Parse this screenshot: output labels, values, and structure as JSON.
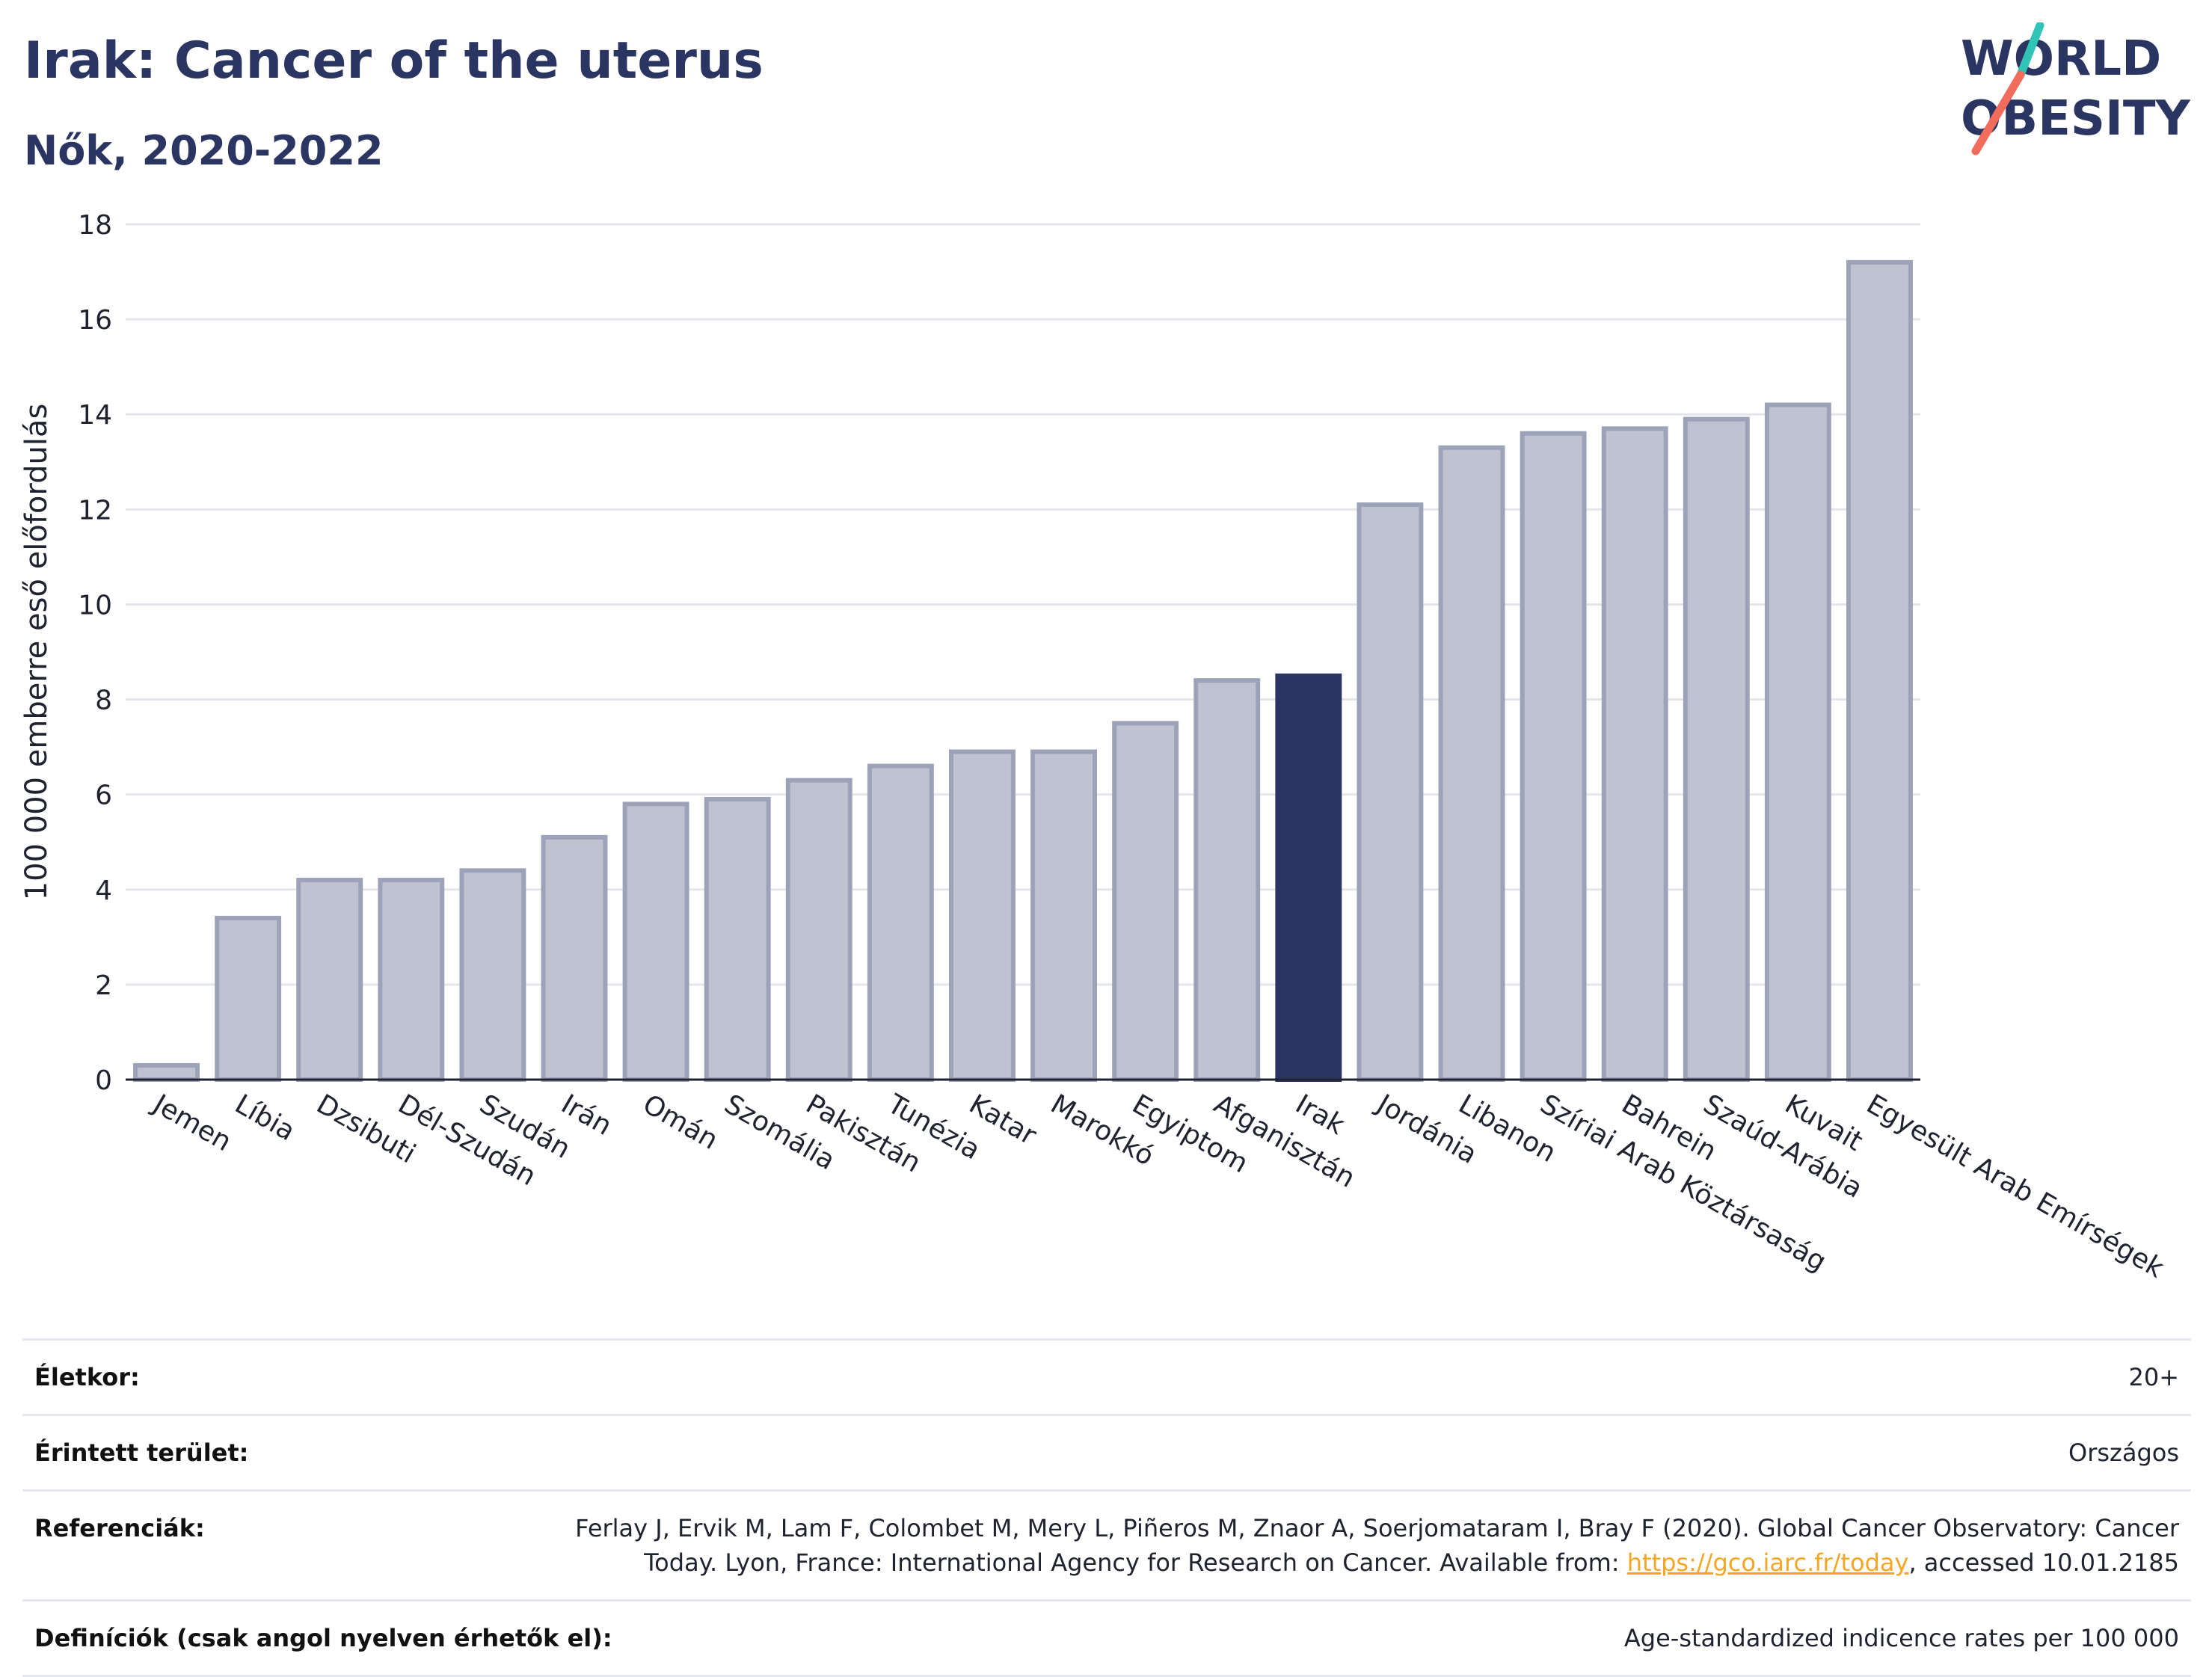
{
  "header": {
    "title": "Irak: Cancer of the uterus",
    "subtitle": "Nők, 2020-2022"
  },
  "logo": {
    "line1": "WORLD",
    "line2": "OBESITY",
    "accent_colors": [
      "#2ec4b6",
      "#f26c5b"
    ]
  },
  "colors": {
    "bar_default": "#bfc3d1",
    "bar_default_stroke": "#9ca2b8",
    "bar_highlight": "#2b3562",
    "grid": "#e4e6ec",
    "axis": "#1f2330"
  },
  "chart_data": {
    "type": "bar",
    "ylabel": "100 000 emberre eső előfordulás",
    "xlabel": "",
    "ylim": [
      0,
      18
    ],
    "yticks": [
      0,
      2,
      4,
      6,
      8,
      10,
      12,
      14,
      16,
      18
    ],
    "grid": true,
    "highlight": "Irak",
    "categories": [
      "Jemen",
      "Líbia",
      "Dzsibuti",
      "Dél-Szudán",
      "Szudán",
      "Irán",
      "Omán",
      "Szomália",
      "Pakisztán",
      "Tunézia",
      "Katar",
      "Marokkó",
      "Egyiptom",
      "Afganisztán",
      "Irak",
      "Jordánia",
      "Libanon",
      "Szíriai Arab Köztársaság",
      "Bahrein",
      "Szaúd-Arábia",
      "Kuvait",
      "Egyesült Arab Emírségek"
    ],
    "values": [
      0.3,
      3.4,
      4.2,
      4.2,
      4.4,
      5.1,
      5.8,
      5.9,
      6.3,
      6.6,
      6.9,
      6.9,
      7.5,
      8.4,
      8.5,
      12.1,
      13.3,
      13.6,
      13.7,
      13.9,
      14.2,
      17.2
    ]
  },
  "info": {
    "age_label": "Életkor:",
    "age_value": "20+",
    "area_label": "Érintett terület:",
    "area_value": "Országos",
    "ref_label": "Referenciák:",
    "ref_text_1": "Ferlay J, Ervik M, Lam F, Colombet M, Mery L, Piñeros M, Znaor A, Soerjomataram I, Bray F (2020). Global Cancer Observatory: Cancer Today. Lyon, France: International Agency for Research on Cancer. Available from: ",
    "ref_link": "https://gco.iarc.fr/today",
    "ref_text_2": ", accessed 10.01.2185",
    "def_label": "Definíciók (csak angol nyelven érhetők el):",
    "def_value": "Age-standardized indicence rates per 100 000"
  }
}
